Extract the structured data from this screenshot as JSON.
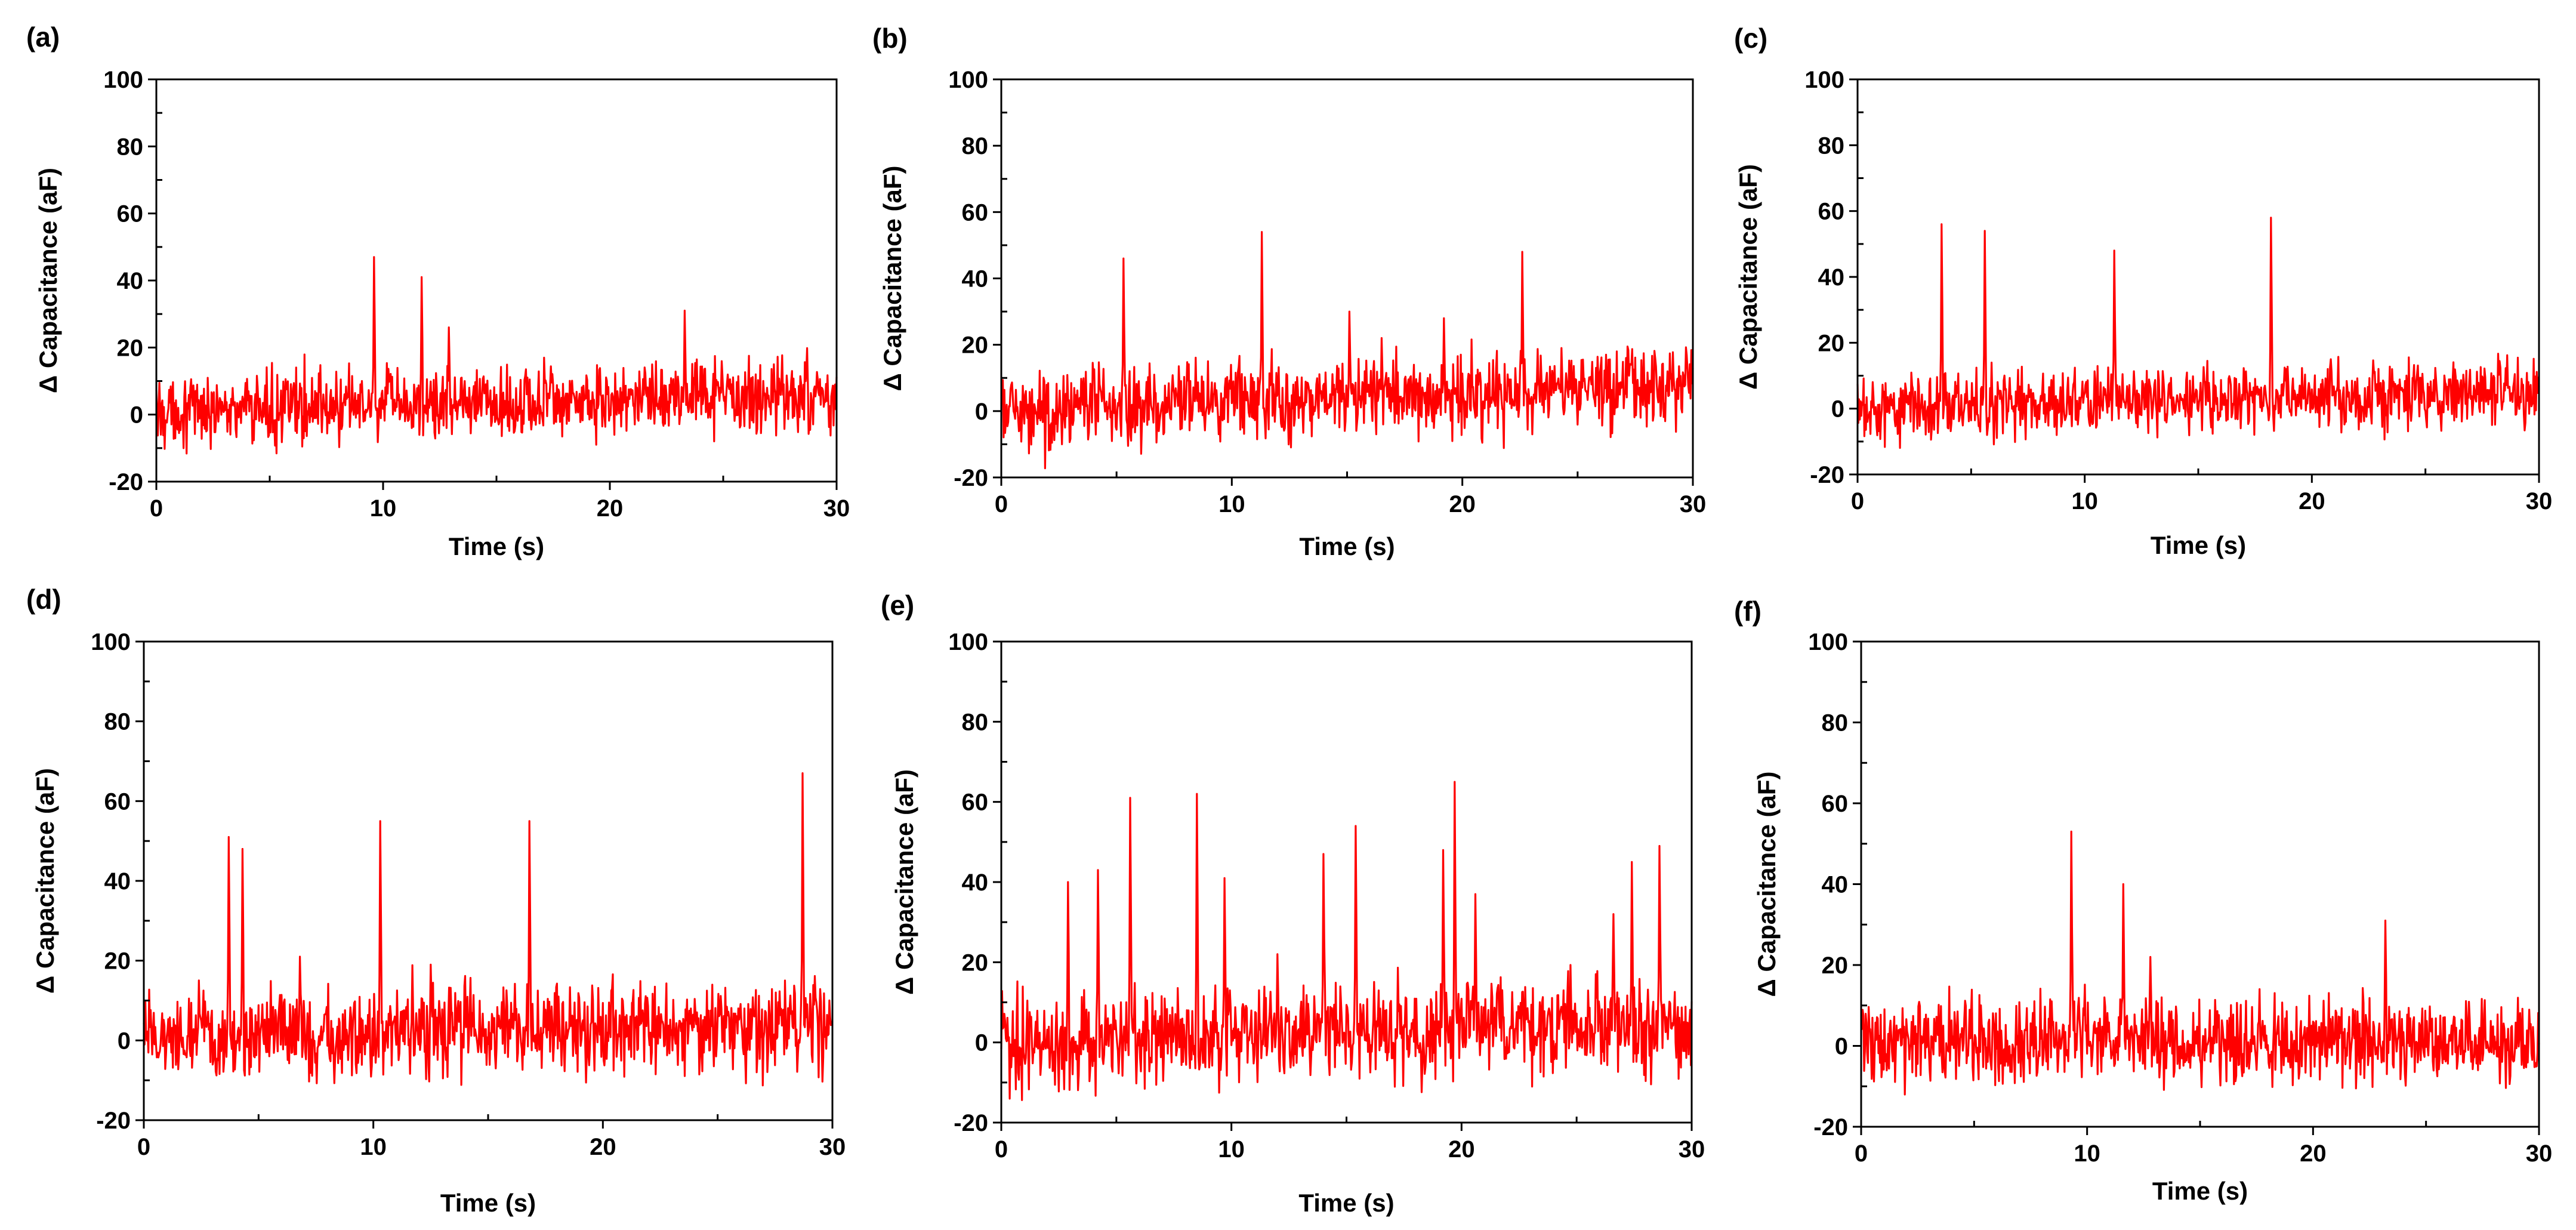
{
  "colors": {
    "series": "#ff0000",
    "axes": "#000000",
    "background": "#ffffff"
  },
  "chart_data": [
    {
      "panel": "(a)",
      "type": "line",
      "xlabel": "Time (s)",
      "ylabel": "Δ Capacitance (aF)",
      "xlim": [
        0,
        30
      ],
      "ylim": [
        -20,
        100
      ],
      "xticks": [
        "0",
        "10",
        "20",
        "30"
      ],
      "yticks": [
        "-20",
        "0",
        "20",
        "40",
        "60",
        "80",
        "100"
      ],
      "noise_amplitude": 5,
      "baseline_start": 1,
      "baseline_end": 6,
      "spikes": [
        {
          "t": 9.6,
          "value": 47
        },
        {
          "t": 11.7,
          "value": 41
        },
        {
          "t": 12.9,
          "value": 26
        },
        {
          "t": 23.3,
          "value": 31
        }
      ]
    },
    {
      "panel": "(b)",
      "type": "line",
      "xlabel": "Time (s)",
      "ylabel": "Δ Capacitance (aF)",
      "xlim": [
        0,
        30
      ],
      "ylim": [
        -20,
        100
      ],
      "xticks": [
        "0",
        "10",
        "20",
        "30"
      ],
      "yticks": [
        "-20",
        "0",
        "20",
        "40",
        "60",
        "80",
        "100"
      ],
      "noise_amplitude": 6,
      "baseline_start": 0,
      "baseline_end": 8,
      "spikes": [
        {
          "t": 5.3,
          "value": 46
        },
        {
          "t": 11.3,
          "value": 54
        },
        {
          "t": 15.1,
          "value": 30
        },
        {
          "t": 16.5,
          "value": 22
        },
        {
          "t": 19.2,
          "value": 28
        },
        {
          "t": 22.6,
          "value": 48
        },
        {
          "t": 24.3,
          "value": 19
        }
      ]
    },
    {
      "panel": "(c)",
      "type": "line",
      "xlabel": "Time (s)",
      "ylabel": "Δ Capacitance (aF)",
      "xlim": [
        0,
        30
      ],
      "ylim": [
        -20,
        100
      ],
      "xticks": [
        "0",
        "10",
        "20",
        "30"
      ],
      "yticks": [
        "-20",
        "0",
        "20",
        "40",
        "60",
        "80",
        "100"
      ],
      "noise_amplitude": 5,
      "baseline_start": 0,
      "baseline_end": 5,
      "spikes": [
        {
          "t": 3.7,
          "value": 56
        },
        {
          "t": 5.6,
          "value": 54
        },
        {
          "t": 11.3,
          "value": 48
        },
        {
          "t": 18.2,
          "value": 58
        }
      ]
    },
    {
      "panel": "(d)",
      "type": "line",
      "xlabel": "Time (s)",
      "ylabel": "Δ Capacitance (aF)",
      "xlim": [
        0,
        30
      ],
      "ylim": [
        -20,
        100
      ],
      "xticks": [
        "0",
        "10",
        "20",
        "30"
      ],
      "yticks": [
        "-20",
        "0",
        "20",
        "40",
        "60",
        "80",
        "100"
      ],
      "noise_amplitude": 5.5,
      "baseline_start": 1,
      "baseline_end": 3,
      "spikes": [
        {
          "t": 3.7,
          "value": 51
        },
        {
          "t": 4.3,
          "value": 48
        },
        {
          "t": 6.8,
          "value": 21
        },
        {
          "t": 10.3,
          "value": 55
        },
        {
          "t": 12.5,
          "value": 19
        },
        {
          "t": 16.8,
          "value": 55
        },
        {
          "t": 28.7,
          "value": 67
        }
      ]
    },
    {
      "panel": "(e)",
      "type": "line",
      "xlabel": "Time (s)",
      "ylabel": "Δ Capacitance (aF)",
      "xlim": [
        0,
        30
      ],
      "ylim": [
        -20,
        100
      ],
      "xticks": [
        "0",
        "10",
        "20",
        "30"
      ],
      "yticks": [
        "-20",
        "0",
        "20",
        "40",
        "60",
        "80",
        "100"
      ],
      "noise_amplitude": 6,
      "baseline_start": 0,
      "baseline_end": 5,
      "spikes": [
        {
          "t": 2.9,
          "value": 40
        },
        {
          "t": 4.2,
          "value": 43
        },
        {
          "t": 5.6,
          "value": 61
        },
        {
          "t": 8.5,
          "value": 62
        },
        {
          "t": 9.7,
          "value": 41
        },
        {
          "t": 12.0,
          "value": 22
        },
        {
          "t": 14.0,
          "value": 47
        },
        {
          "t": 15.4,
          "value": 54
        },
        {
          "t": 19.2,
          "value": 48
        },
        {
          "t": 19.7,
          "value": 65
        },
        {
          "t": 20.6,
          "value": 37
        },
        {
          "t": 26.6,
          "value": 32
        },
        {
          "t": 27.4,
          "value": 45
        },
        {
          "t": 28.6,
          "value": 49
        }
      ]
    },
    {
      "panel": "(f)",
      "type": "line",
      "xlabel": "Time (s)",
      "ylabel": "Δ Capacitance (aF)",
      "xlim": [
        0,
        30
      ],
      "ylim": [
        -20,
        100
      ],
      "xticks": [
        "0",
        "10",
        "20",
        "30"
      ],
      "yticks": [
        "-20",
        "0",
        "20",
        "40",
        "60",
        "80",
        "100"
      ],
      "noise_amplitude": 5,
      "baseline_start": 1,
      "baseline_end": 1,
      "spikes": [
        {
          "t": 9.3,
          "value": 53
        },
        {
          "t": 11.6,
          "value": 40
        },
        {
          "t": 12.8,
          "value": 22
        },
        {
          "t": 23.2,
          "value": 31
        }
      ]
    }
  ]
}
